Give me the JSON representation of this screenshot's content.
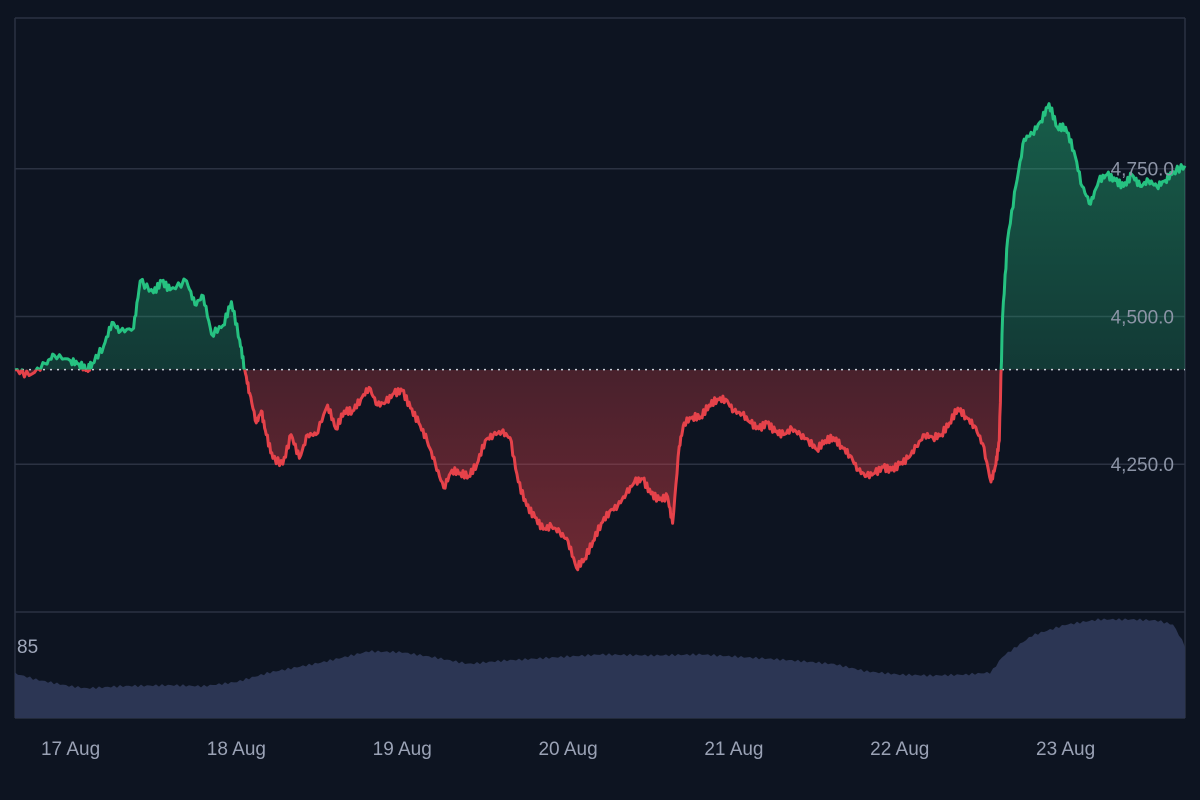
{
  "chart_data": {
    "type": "area",
    "baseline": 4410,
    "colors": {
      "up": "#26c281",
      "down": "#e5424a",
      "volume": "#2c3654",
      "grid": "#2b3242",
      "background": "#0d1421",
      "baseline_line": "#c9ced8"
    },
    "y_ticks": [
      {
        "value": 4250,
        "label": "4,250.0"
      },
      {
        "value": 4500,
        "label": "4,500.0"
      },
      {
        "value": 4750,
        "label": "4,750.0"
      }
    ],
    "ylim": [
      4000,
      5005
    ],
    "x_ticks": [
      {
        "day": 0,
        "label": "17 Aug"
      },
      {
        "day": 1,
        "label": "18 Aug"
      },
      {
        "day": 2,
        "label": "19 Aug"
      },
      {
        "day": 3,
        "label": "20 Aug"
      },
      {
        "day": 4,
        "label": "21 Aug"
      },
      {
        "day": 5,
        "label": "22 Aug"
      },
      {
        "day": 6,
        "label": "23 Aug"
      }
    ],
    "xlim": [
      -0.335,
      6.72
    ],
    "price_series": [
      [
        -0.335,
        4410
      ],
      [
        -0.25,
        4400
      ],
      [
        -0.15,
        4420
      ],
      [
        -0.1,
        4435
      ],
      [
        0.0,
        4425
      ],
      [
        0.05,
        4420
      ],
      [
        0.1,
        4410
      ],
      [
        0.13,
        4420
      ],
      [
        0.2,
        4450
      ],
      [
        0.25,
        4490
      ],
      [
        0.3,
        4475
      ],
      [
        0.38,
        4480
      ],
      [
        0.42,
        4560
      ],
      [
        0.5,
        4540
      ],
      [
        0.55,
        4560
      ],
      [
        0.6,
        4545
      ],
      [
        0.7,
        4560
      ],
      [
        0.75,
        4520
      ],
      [
        0.8,
        4535
      ],
      [
        0.85,
        4470
      ],
      [
        0.92,
        4485
      ],
      [
        0.97,
        4525
      ],
      [
        1.02,
        4460
      ],
      [
        1.05,
        4410
      ],
      [
        1.08,
        4370
      ],
      [
        1.12,
        4320
      ],
      [
        1.15,
        4340
      ],
      [
        1.18,
        4300
      ],
      [
        1.22,
        4260
      ],
      [
        1.28,
        4250
      ],
      [
        1.33,
        4300
      ],
      [
        1.38,
        4260
      ],
      [
        1.43,
        4300
      ],
      [
        1.48,
        4300
      ],
      [
        1.55,
        4350
      ],
      [
        1.6,
        4310
      ],
      [
        1.65,
        4340
      ],
      [
        1.7,
        4340
      ],
      [
        1.75,
        4360
      ],
      [
        1.8,
        4380
      ],
      [
        1.85,
        4350
      ],
      [
        1.9,
        4355
      ],
      [
        1.95,
        4370
      ],
      [
        2.0,
        4375
      ],
      [
        2.05,
        4345
      ],
      [
        2.1,
        4320
      ],
      [
        2.15,
        4290
      ],
      [
        2.2,
        4250
      ],
      [
        2.25,
        4210
      ],
      [
        2.3,
        4240
      ],
      [
        2.35,
        4235
      ],
      [
        2.4,
        4230
      ],
      [
        2.45,
        4250
      ],
      [
        2.5,
        4290
      ],
      [
        2.55,
        4300
      ],
      [
        2.6,
        4305
      ],
      [
        2.65,
        4295
      ],
      [
        2.7,
        4220
      ],
      [
        2.75,
        4180
      ],
      [
        2.8,
        4160
      ],
      [
        2.85,
        4140
      ],
      [
        2.9,
        4145
      ],
      [
        2.95,
        4135
      ],
      [
        3.0,
        4120
      ],
      [
        3.05,
        4075
      ],
      [
        3.1,
        4090
      ],
      [
        3.15,
        4120
      ],
      [
        3.2,
        4150
      ],
      [
        3.25,
        4170
      ],
      [
        3.3,
        4180
      ],
      [
        3.35,
        4200
      ],
      [
        3.4,
        4220
      ],
      [
        3.45,
        4225
      ],
      [
        3.5,
        4200
      ],
      [
        3.55,
        4190
      ],
      [
        3.6,
        4195
      ],
      [
        3.63,
        4150
      ],
      [
        3.67,
        4280
      ],
      [
        3.7,
        4320
      ],
      [
        3.75,
        4330
      ],
      [
        3.8,
        4330
      ],
      [
        3.85,
        4350
      ],
      [
        3.9,
        4360
      ],
      [
        3.95,
        4360
      ],
      [
        4.0,
        4340
      ],
      [
        4.05,
        4335
      ],
      [
        4.1,
        4320
      ],
      [
        4.15,
        4310
      ],
      [
        4.2,
        4320
      ],
      [
        4.25,
        4305
      ],
      [
        4.3,
        4300
      ],
      [
        4.35,
        4310
      ],
      [
        4.4,
        4300
      ],
      [
        4.45,
        4290
      ],
      [
        4.5,
        4275
      ],
      [
        4.55,
        4290
      ],
      [
        4.6,
        4295
      ],
      [
        4.65,
        4280
      ],
      [
        4.7,
        4265
      ],
      [
        4.75,
        4240
      ],
      [
        4.8,
        4230
      ],
      [
        4.85,
        4235
      ],
      [
        4.9,
        4245
      ],
      [
        4.95,
        4240
      ],
      [
        5.0,
        4250
      ],
      [
        5.05,
        4260
      ],
      [
        5.1,
        4280
      ],
      [
        5.15,
        4300
      ],
      [
        5.2,
        4295
      ],
      [
        5.25,
        4300
      ],
      [
        5.3,
        4320
      ],
      [
        5.35,
        4345
      ],
      [
        5.4,
        4330
      ],
      [
        5.45,
        4315
      ],
      [
        5.5,
        4285
      ],
      [
        5.55,
        4220
      ],
      [
        5.58,
        4250
      ],
      [
        5.6,
        4290
      ],
      [
        5.62,
        4500
      ],
      [
        5.65,
        4630
      ],
      [
        5.7,
        4720
      ],
      [
        5.75,
        4800
      ],
      [
        5.8,
        4810
      ],
      [
        5.85,
        4830
      ],
      [
        5.9,
        4860
      ],
      [
        5.95,
        4820
      ],
      [
        6.0,
        4820
      ],
      [
        6.05,
        4780
      ],
      [
        6.1,
        4720
      ],
      [
        6.15,
        4690
      ],
      [
        6.2,
        4730
      ],
      [
        6.25,
        4740
      ],
      [
        6.3,
        4730
      ],
      [
        6.35,
        4720
      ],
      [
        6.4,
        4740
      ],
      [
        6.45,
        4720
      ],
      [
        6.5,
        4730
      ],
      [
        6.55,
        4720
      ],
      [
        6.6,
        4730
      ],
      [
        6.65,
        4745
      ],
      [
        6.72,
        4755
      ]
    ],
    "volume_label": "85",
    "volume_max": 100,
    "volume_series": [
      [
        -0.335,
        42
      ],
      [
        -0.2,
        36
      ],
      [
        0.0,
        30
      ],
      [
        0.1,
        28
      ],
      [
        0.3,
        30
      ],
      [
        0.6,
        31
      ],
      [
        0.8,
        30
      ],
      [
        1.0,
        34
      ],
      [
        1.2,
        43
      ],
      [
        1.5,
        52
      ],
      [
        1.8,
        63
      ],
      [
        2.0,
        62
      ],
      [
        2.2,
        57
      ],
      [
        2.4,
        51
      ],
      [
        2.6,
        54
      ],
      [
        2.8,
        56
      ],
      [
        3.0,
        58
      ],
      [
        3.2,
        60
      ],
      [
        3.5,
        59
      ],
      [
        3.8,
        60
      ],
      [
        4.0,
        58
      ],
      [
        4.3,
        55
      ],
      [
        4.6,
        51
      ],
      [
        4.8,
        44
      ],
      [
        5.0,
        41
      ],
      [
        5.2,
        40
      ],
      [
        5.4,
        41
      ],
      [
        5.55,
        43
      ],
      [
        5.62,
        58
      ],
      [
        5.8,
        78
      ],
      [
        6.0,
        88
      ],
      [
        6.2,
        93
      ],
      [
        6.4,
        93
      ],
      [
        6.55,
        92
      ],
      [
        6.65,
        88
      ],
      [
        6.72,
        68
      ]
    ]
  }
}
